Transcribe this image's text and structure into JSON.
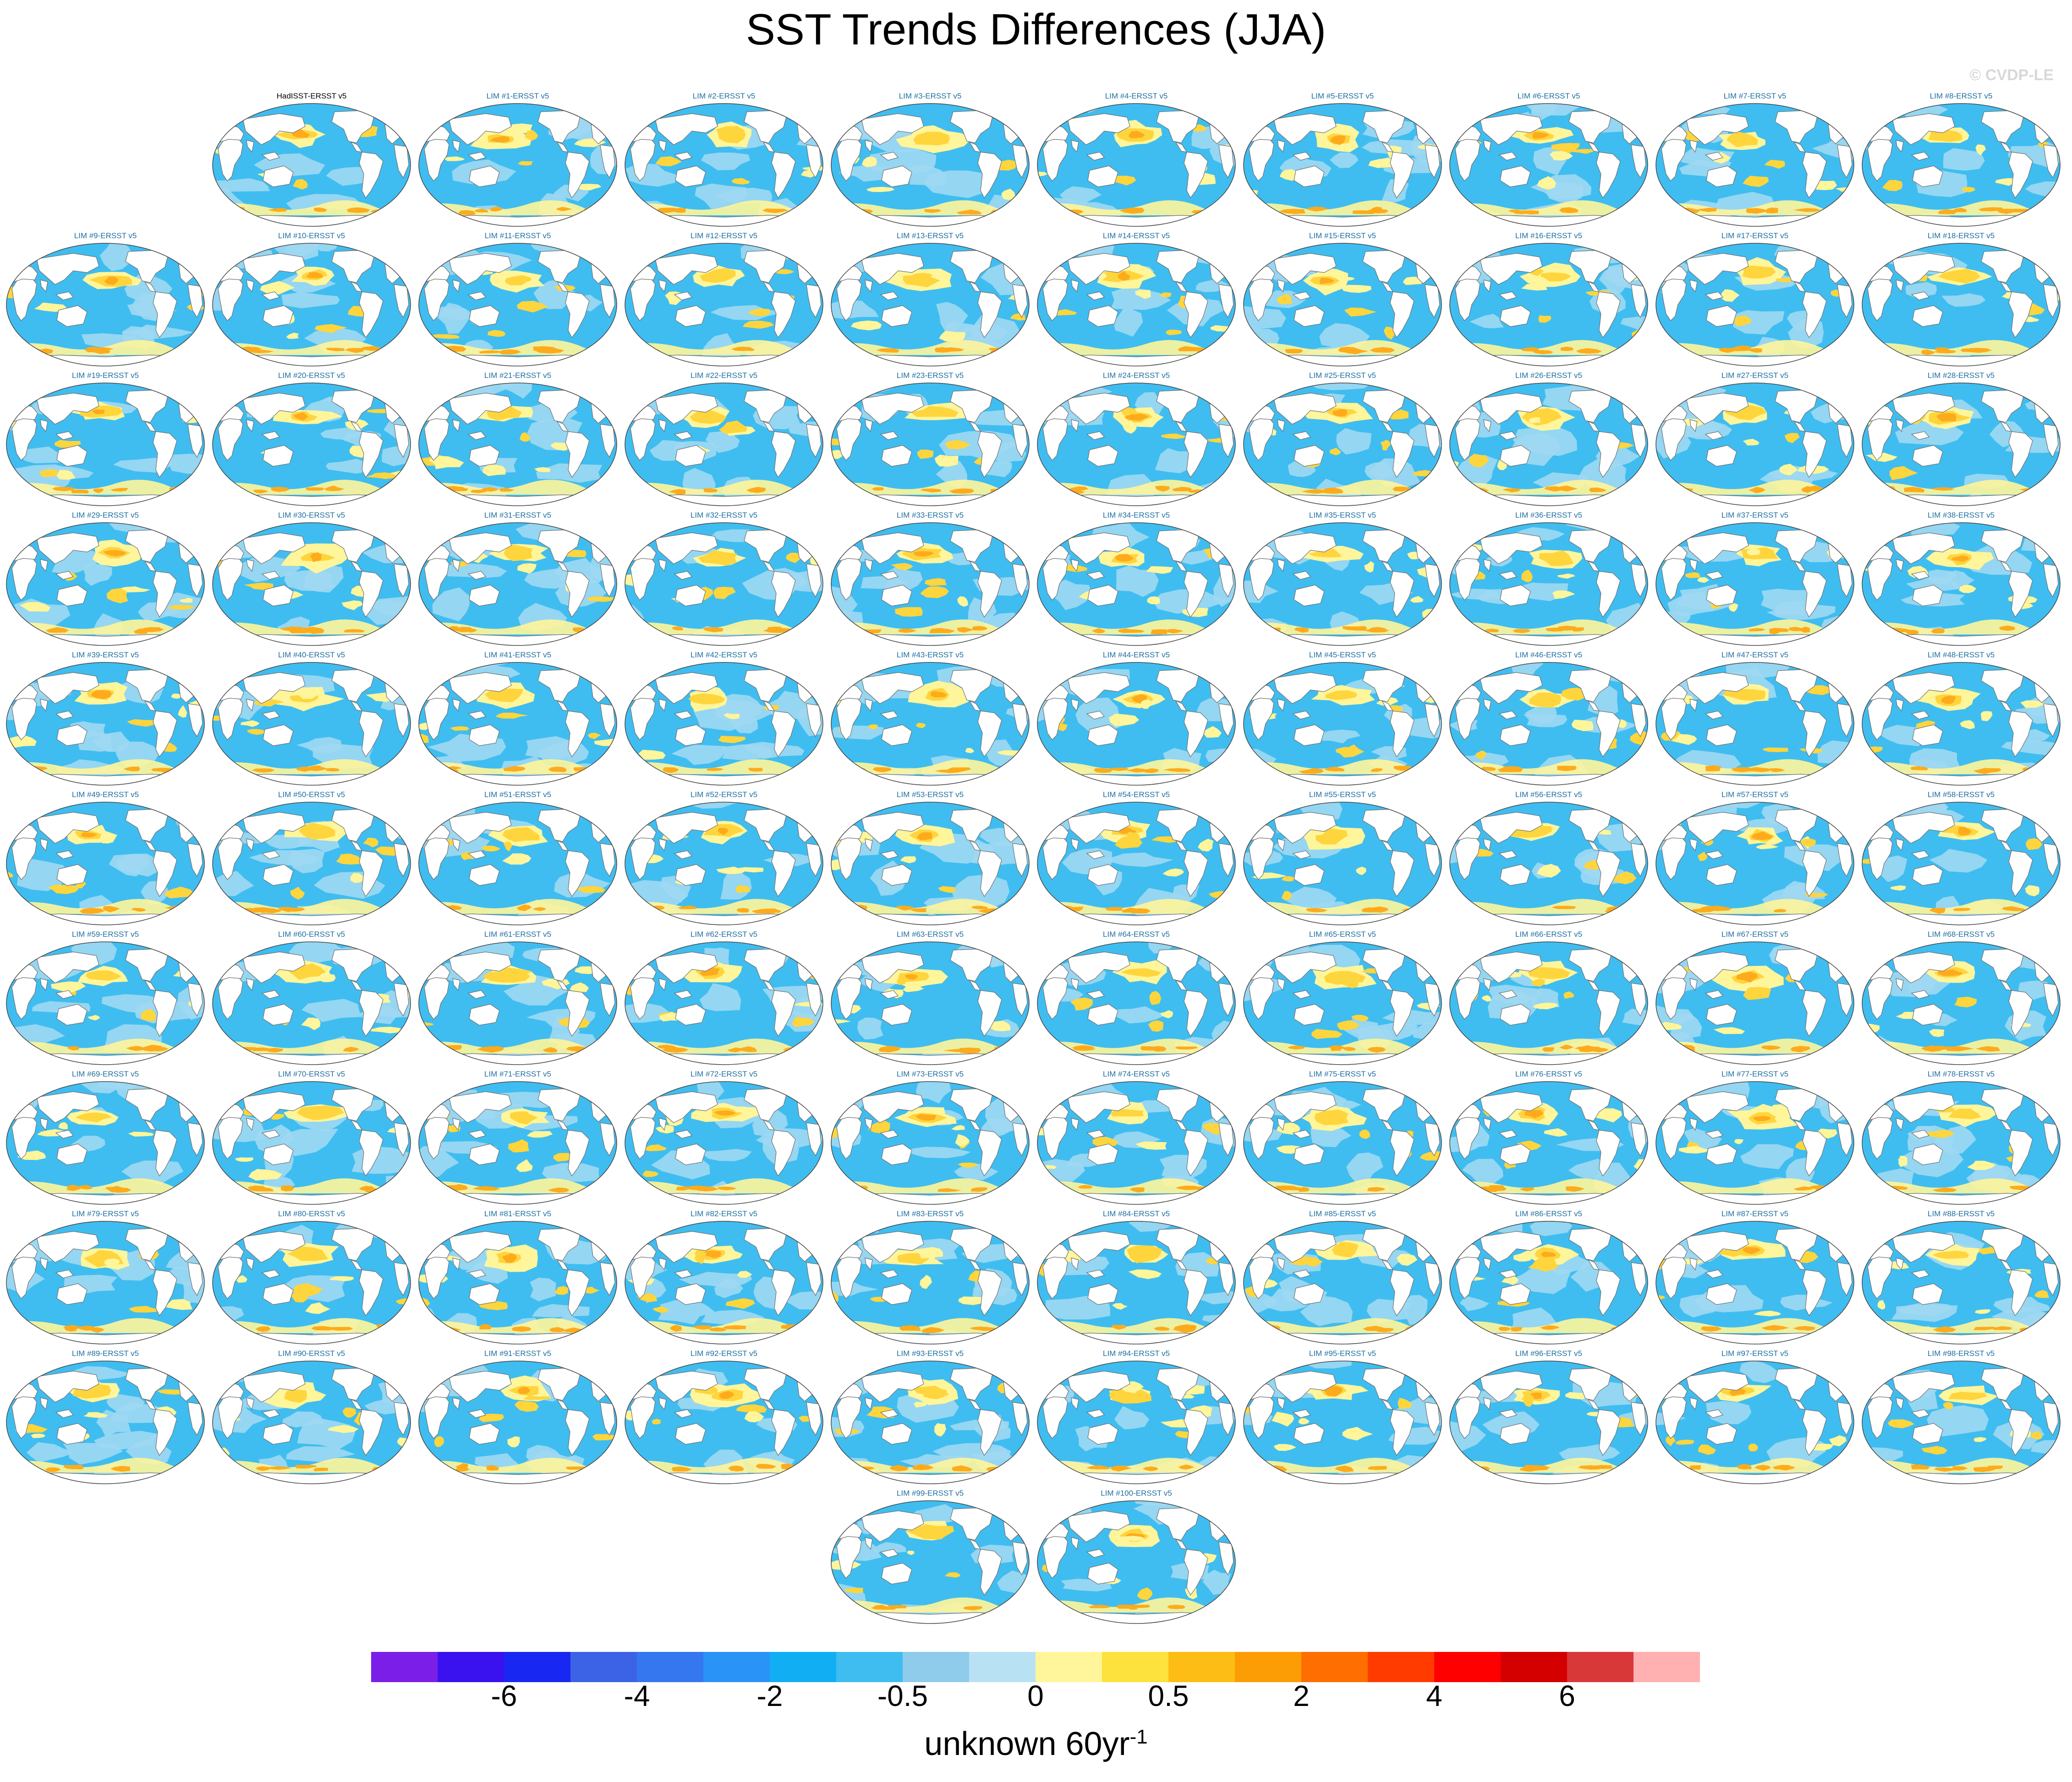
{
  "title": "SST Trends Differences (JJA)",
  "watermark": "© CVDP-LE",
  "colors": {
    "land": "#ffffff",
    "coast": "#6e6e6e",
    "outline": "#444444",
    "panel_title": "#1f6fa0",
    "cold": "#3fbdf0",
    "cold_light": "#9fd8f2",
    "warm_light": "#fff59a",
    "warm": "#ffd53d",
    "warmer": "#fdab1c"
  },
  "chart_data": {
    "type": "heatmap",
    "projection": "global ellipse map panels",
    "colorbar": {
      "colors": [
        "#7b1fe8",
        "#3a12f0",
        "#1828f2",
        "#3c63e6",
        "#3477ef",
        "#2a93f7",
        "#11aef3",
        "#3fbdf0",
        "#8fcbea",
        "#b9e1f4",
        "#fff59a",
        "#fde13c",
        "#fdbd14",
        "#fd9d05",
        "#ff6e00",
        "#ff3b00",
        "#ff0000",
        "#d40000",
        "#d83838",
        "#ffb0b0"
      ],
      "tick_labels": [
        "-6",
        "-4",
        "-2",
        "-0.5",
        "0",
        "0.5",
        "2",
        "4",
        "6"
      ],
      "tick_boundaries": [
        2,
        4,
        6,
        8,
        10,
        12,
        14,
        16,
        18
      ],
      "units": "unknown 60yr",
      "units_exponent": "-1"
    },
    "panels": [
      "HadISST-ERSST v5",
      "LIM #1-ERSST v5",
      "LIM #2-ERSST v5",
      "LIM #3-ERSST v5",
      "LIM #4-ERSST v5",
      "LIM #5-ERSST v5",
      "LIM #6-ERSST v5",
      "LIM #7-ERSST v5",
      "LIM #8-ERSST v5",
      "LIM #9-ERSST v5",
      "LIM #10-ERSST v5",
      "LIM #11-ERSST v5",
      "LIM #12-ERSST v5",
      "LIM #13-ERSST v5",
      "LIM #14-ERSST v5",
      "LIM #15-ERSST v5",
      "LIM #16-ERSST v5",
      "LIM #17-ERSST v5",
      "LIM #18-ERSST v5",
      "LIM #19-ERSST v5",
      "LIM #20-ERSST v5",
      "LIM #21-ERSST v5",
      "LIM #22-ERSST v5",
      "LIM #23-ERSST v5",
      "LIM #24-ERSST v5",
      "LIM #25-ERSST v5",
      "LIM #26-ERSST v5",
      "LIM #27-ERSST v5",
      "LIM #28-ERSST v5",
      "LIM #29-ERSST v5",
      "LIM #30-ERSST v5",
      "LIM #31-ERSST v5",
      "LIM #32-ERSST v5",
      "LIM #33-ERSST v5",
      "LIM #34-ERSST v5",
      "LIM #35-ERSST v5",
      "LIM #36-ERSST v5",
      "LIM #37-ERSST v5",
      "LIM #38-ERSST v5",
      "LIM #39-ERSST v5",
      "LIM #40-ERSST v5",
      "LIM #41-ERSST v5",
      "LIM #42-ERSST v5",
      "LIM #43-ERSST v5",
      "LIM #44-ERSST v5",
      "LIM #45-ERSST v5",
      "LIM #46-ERSST v5",
      "LIM #47-ERSST v5",
      "LIM #48-ERSST v5",
      "LIM #49-ERSST v5",
      "LIM #50-ERSST v5",
      "LIM #51-ERSST v5",
      "LIM #52-ERSST v5",
      "LIM #53-ERSST v5",
      "LIM #54-ERSST v5",
      "LIM #55-ERSST v5",
      "LIM #56-ERSST v5",
      "LIM #57-ERSST v5",
      "LIM #58-ERSST v5",
      "LIM #59-ERSST v5",
      "LIM #60-ERSST v5",
      "LIM #61-ERSST v5",
      "LIM #62-ERSST v5",
      "LIM #63-ERSST v5",
      "LIM #64-ERSST v5",
      "LIM #65-ERSST v5",
      "LIM #66-ERSST v5",
      "LIM #67-ERSST v5",
      "LIM #68-ERSST v5",
      "LIM #69-ERSST v5",
      "LIM #70-ERSST v5",
      "LIM #71-ERSST v5",
      "LIM #72-ERSST v5",
      "LIM #73-ERSST v5",
      "LIM #74-ERSST v5",
      "LIM #75-ERSST v5",
      "LIM #76-ERSST v5",
      "LIM #77-ERSST v5",
      "LIM #78-ERSST v5",
      "LIM #79-ERSST v5",
      "LIM #80-ERSST v5",
      "LIM #81-ERSST v5",
      "LIM #82-ERSST v5",
      "LIM #83-ERSST v5",
      "LIM #84-ERSST v5",
      "LIM #85-ERSST v5",
      "LIM #86-ERSST v5",
      "LIM #87-ERSST v5",
      "LIM #88-ERSST v5",
      "LIM #89-ERSST v5",
      "LIM #90-ERSST v5",
      "LIM #91-ERSST v5",
      "LIM #92-ERSST v5",
      "LIM #93-ERSST v5",
      "LIM #94-ERSST v5",
      "LIM #95-ERSST v5",
      "LIM #96-ERSST v5",
      "LIM #97-ERSST v5",
      "LIM #98-ERSST v5",
      "LIM #99-ERSST v5",
      "LIM #100-ERSST v5"
    ]
  }
}
